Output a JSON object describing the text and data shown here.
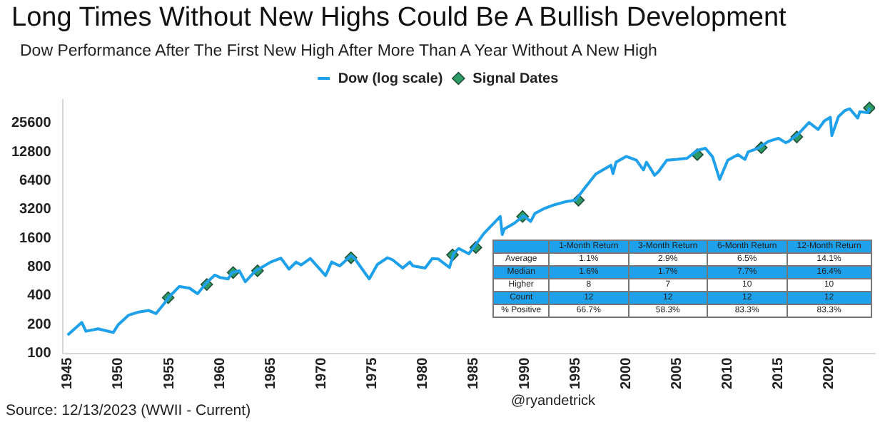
{
  "chart_data": {
    "type": "line",
    "title": "Long Times Without New Highs Could Be A Bullish Development",
    "subtitle": "Dow Performance After The First New High After More Than A Year Without A New High",
    "log": "y",
    "grid": false,
    "legend": "top",
    "xlim": [
      1944.5,
      2024.5
    ],
    "xticks": [
      1945,
      1950,
      1955,
      1960,
      1965,
      1970,
      1975,
      1980,
      1985,
      1990,
      1995,
      2000,
      2005,
      2010,
      2015,
      2020
    ],
    "ylim": [
      100,
      45000
    ],
    "yticks": [
      100,
      200,
      400,
      800,
      1600,
      3200,
      6400,
      12800,
      25600
    ],
    "series": [
      {
        "name": "Dow (log scale)",
        "type": "line",
        "color": "#1ea0ea",
        "marker": "none",
        "x": [
          1945,
          1946.4,
          1946.8,
          1948,
          1949.5,
          1950,
          1951,
          1952,
          1953,
          1953.7,
          1954.5,
          1955,
          1956,
          1957,
          1957.8,
          1958.7,
          1959.5,
          1960,
          1960.8,
          1961.2,
          1961.9,
          1962.5,
          1963.5,
          1964,
          1965,
          1966,
          1966.8,
          1967.5,
          1968,
          1968.9,
          1970.4,
          1971,
          1971.8,
          1972.9,
          1973.2,
          1974.7,
          1975.5,
          1976.5,
          1977,
          1978,
          1978.7,
          1979,
          1980.2,
          1980.9,
          1981.5,
          1982.6,
          1983,
          1983.5,
          1984.5,
          1985,
          1986,
          1987.6,
          1987.8,
          1988,
          1989,
          1989.9,
          1990.6,
          1991,
          1992,
          1993,
          1994,
          1995,
          1996,
          1997,
          1998.5,
          1998.7,
          1999,
          2000,
          2001,
          2001.7,
          2002,
          2002.8,
          2003.2,
          2004,
          2005,
          2006,
          2007,
          2007.8,
          2008.5,
          2009.2,
          2010,
          2011,
          2011.7,
          2012,
          2013,
          2014,
          2015,
          2015.7,
          2016,
          2017,
          2018,
          2018.9,
          2019.5,
          2020.1,
          2020.25,
          2020.9,
          2021.5,
          2022,
          2022.8,
          2023,
          2023.8,
          2023.95
        ],
        "values": [
          155,
          210,
          170,
          180,
          165,
          200,
          250,
          270,
          280,
          260,
          330,
          390,
          500,
          480,
          420,
          550,
          660,
          620,
          600,
          700,
          730,
          560,
          730,
          780,
          900,
          990,
          760,
          900,
          840,
          980,
          650,
          900,
          820,
          1050,
          1000,
          600,
          850,
          1000,
          950,
          780,
          900,
          820,
          780,
          980,
          970,
          790,
          1100,
          1250,
          1100,
          1290,
          1800,
          2700,
          1750,
          2000,
          2300,
          2750,
          2400,
          2900,
          3300,
          3600,
          3850,
          4000,
          5500,
          7500,
          9300,
          7600,
          10000,
          11500,
          10500,
          8300,
          10000,
          7300,
          8000,
          10500,
          10700,
          11000,
          13300,
          14000,
          11400,
          6600,
          10500,
          12000,
          10700,
          12800,
          14000,
          16500,
          17800,
          16000,
          16500,
          20000,
          26000,
          22000,
          27000,
          29500,
          19000,
          30000,
          34500,
          36300,
          29000,
          33700,
          33000,
          37000
        ]
      },
      {
        "name": "Signal Dates",
        "type": "scatter",
        "color": "#2e9a66",
        "marker": "diamond",
        "x": [
          1954.9,
          1958.7,
          1961.3,
          1963.7,
          1972.9,
          1982.9,
          1985.2,
          1989.8,
          1995.3,
          2007.0,
          2013.3,
          2016.8,
          2023.95
        ],
        "values": [
          382,
          525,
          700,
          730,
          1000,
          1070,
          1280,
          2700,
          4000,
          12000,
          14200,
          18400,
          37000
        ]
      }
    ],
    "annotations": [
      "Source: 12/13/2023 (WWII - Current)",
      "@ryandetrick",
      "1-Month Return",
      "3-Month Return",
      "6-Month Return",
      "12-Month Return",
      "Average",
      "1.1%",
      "2.9%",
      "6.5%",
      "14.1%",
      "Median",
      "1.6%",
      "1.7%",
      "7.7%",
      "16.4%",
      "Higher",
      "8",
      "7",
      "10",
      "10",
      "Count",
      "12",
      "12",
      "12",
      "12",
      "% Positive",
      "66.7%",
      "58.3%",
      "83.3%",
      "83.3%"
    ]
  }
}
